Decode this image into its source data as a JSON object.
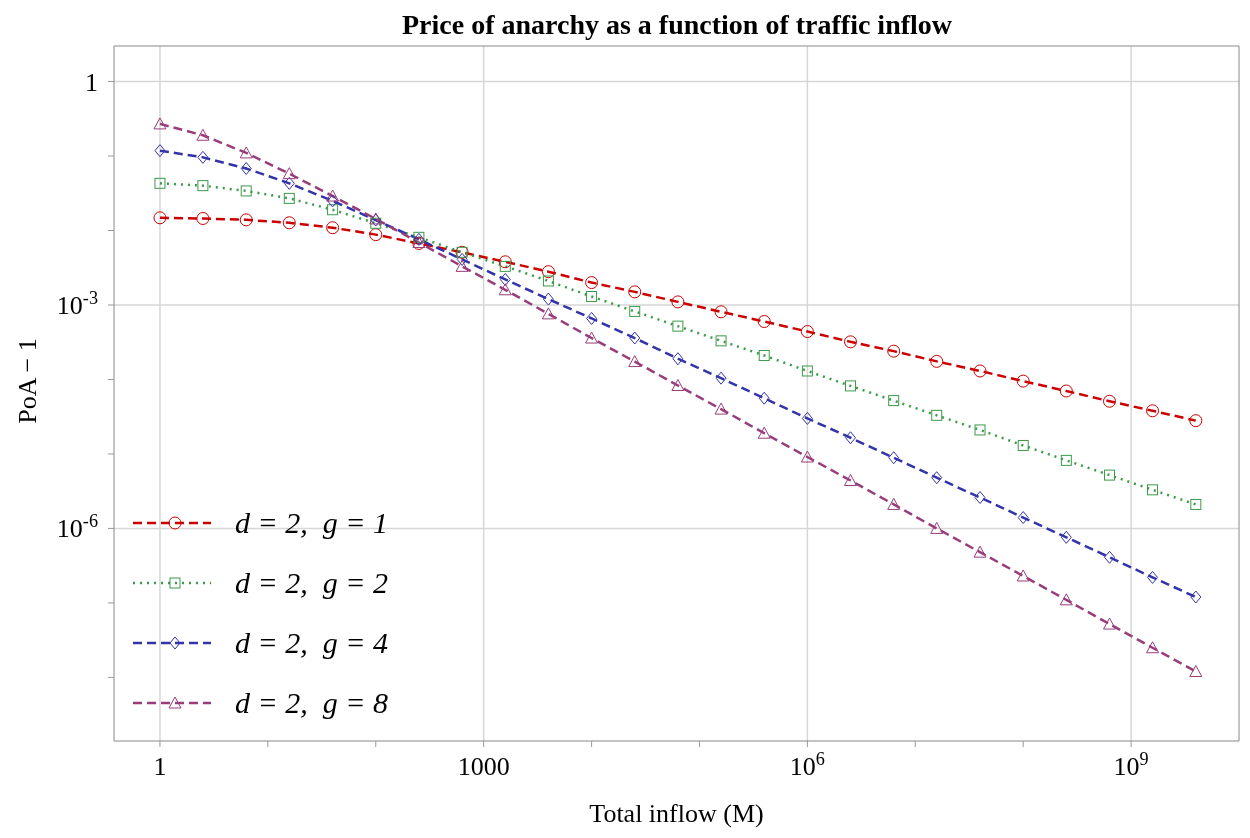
{
  "chart_data": {
    "type": "line",
    "title": "Price of anarchy as a function of traffic inflow",
    "xlabel": "Total inflow (M)",
    "ylabel": "PoA − 1",
    "log": "xy",
    "grid": true,
    "legend": "bottom left",
    "x": [
      1,
      2.5,
      6.3,
      15.8,
      39.8,
      100,
      251,
      631,
      1585,
      3981,
      10000,
      25119,
      63096,
      158489,
      398107,
      1000000,
      2510000,
      6310000,
      15800000,
      39800000,
      100000000,
      251000000,
      631000000,
      1580000000,
      3980000000
    ],
    "xlim": [
      0.375,
      10000000000
    ],
    "ylim": [
      1.4e-09,
      3
    ],
    "xticks": [
      1,
      {
        "value": 10,
        "label": null
      },
      {
        "value": 100,
        "label": null
      },
      1000,
      {
        "value": 10000,
        "label": null
      },
      {
        "value": 100000,
        "label": null
      },
      {
        "value": 1000000,
        "label": "10$^{6}$"
      },
      {
        "value": 10000000,
        "label": null
      },
      {
        "value": 100000000,
        "label": null
      },
      {
        "value": 1000000000,
        "label": "10$^{9}$"
      }
    ],
    "yticks": [
      1,
      {
        "value": 0.1,
        "label": null
      },
      {
        "value": 0.01,
        "label": null
      },
      {
        "value": 0.001,
        "label": "10$^{-3}$"
      },
      {
        "value": 0.0001,
        "label": null
      },
      {
        "value": 1e-05,
        "label": null
      },
      {
        "value": 1e-06,
        "label": "10$^{-6}$"
      },
      {
        "value": 1e-07,
        "label": null
      },
      {
        "value": 1e-08,
        "label": null
      }
    ],
    "series": [
      {
        "name": "d = 2,  g = 1",
        "color": "#cc0000",
        "marker": "circle",
        "line_style": "dashed",
        "values": [
          0.0148,
          0.0145,
          0.0139,
          0.0127,
          0.0109,
          0.0088,
          0.0067,
          0.0051,
          0.0038,
          0.0028,
          0.002,
          0.0015,
          0.0011,
          0.00081,
          0.0006,
          0.00044,
          0.00032,
          0.00024,
          0.000175,
          0.00013,
          9.5e-05,
          7e-05,
          5.1e-05,
          3.8e-05,
          2.8e-05
        ]
      },
      {
        "name": "d = 2,  g = 2",
        "color": "#3a9a48",
        "marker": "square",
        "line_style": "dotted",
        "values": [
          0.043,
          0.04,
          0.034,
          0.027,
          0.019,
          0.0125,
          0.0081,
          0.0051,
          0.0033,
          0.0021,
          0.0013,
          0.00082,
          0.00052,
          0.00033,
          0.00021,
          0.00013,
          8.2e-05,
          5.2e-05,
          3.3e-05,
          2.1e-05,
          1.3e-05,
          8.2e-06,
          5.2e-06,
          3.3e-06,
          2.1e-06
        ]
      },
      {
        "name": "d = 2,  g = 4",
        "color": "#3333aa",
        "marker": "diamond",
        "line_style": "dashed",
        "values": [
          0.118,
          0.096,
          0.068,
          0.043,
          0.025,
          0.0138,
          0.0076,
          0.0041,
          0.0022,
          0.0012,
          0.00066,
          0.00036,
          0.00019,
          0.000104,
          5.6e-05,
          3e-05,
          1.65e-05,
          8.9e-06,
          4.8e-06,
          2.6e-06,
          1.4e-06,
          7.6e-07,
          4.1e-07,
          2.2e-07,
          1.2e-07
        ]
      },
      {
        "name": "d = 2,  g = 8",
        "color": "#993d7a",
        "marker": "triangle",
        "line_style": "dashed",
        "values": [
          0.27,
          0.19,
          0.11,
          0.058,
          0.029,
          0.0143,
          0.0069,
          0.0033,
          0.0016,
          0.00076,
          0.00036,
          0.000174,
          8.3e-05,
          4e-05,
          1.9e-05,
          9.1e-06,
          4.4e-06,
          2.1e-06,
          1e-06,
          4.8e-07,
          2.3e-07,
          1.1e-07,
          5.2e-08,
          2.5e-08,
          1.2e-08
        ]
      }
    ]
  }
}
